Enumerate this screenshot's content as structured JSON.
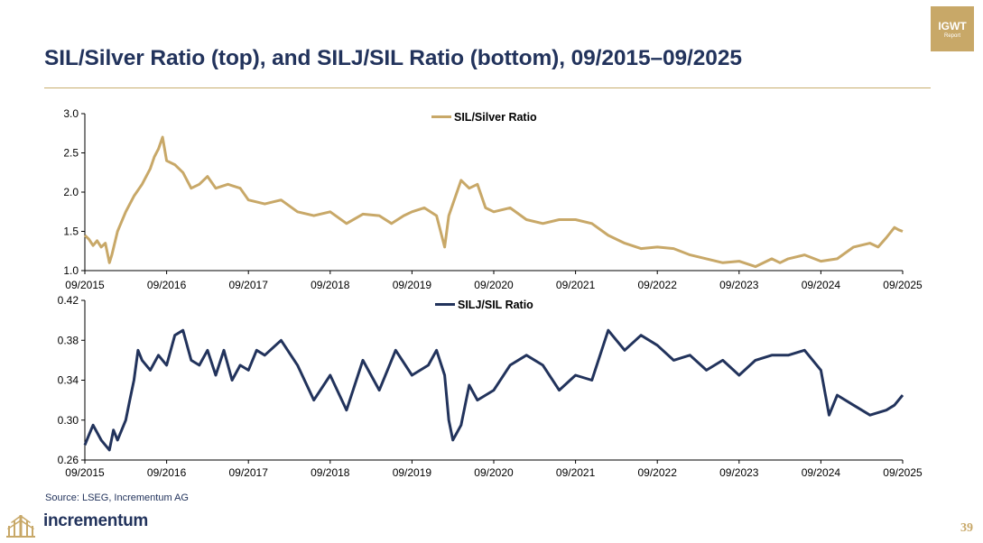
{
  "slide": {
    "title": "SIL/Silver Ratio (top), and SILJ/SIL Ratio (bottom), 09/2015–09/2025",
    "badge_line1": "IGWT",
    "badge_line2": "Report",
    "source": "Source: LSEG, Incrementum AG",
    "logo_text": "incrementum",
    "page_number": "39",
    "colors": {
      "gold": "#c8a868",
      "navy": "#22335c"
    }
  },
  "chart_data": [
    {
      "type": "line",
      "title": "",
      "legend": "SIL/Silver Ratio",
      "legend_position": "top-center",
      "color": "#c8a868",
      "categories": [
        "09/2015",
        "09/2016",
        "09/2017",
        "09/2018",
        "09/2019",
        "09/2020",
        "09/2021",
        "09/2022",
        "09/2023",
        "09/2024",
        "09/2025"
      ],
      "ylim": [
        1.0,
        3.0
      ],
      "yticks": [
        "1.0",
        "1.5",
        "2.0",
        "2.5",
        "3.0"
      ],
      "grid": false,
      "series": [
        {
          "name": "SIL/Silver Ratio",
          "x": [
            0,
            0.05,
            0.1,
            0.15,
            0.2,
            0.25,
            0.3,
            0.33,
            0.4,
            0.5,
            0.6,
            0.7,
            0.8,
            0.85,
            0.9,
            0.95,
            1.0,
            1.1,
            1.2,
            1.3,
            1.4,
            1.5,
            1.6,
            1.75,
            1.9,
            2.0,
            2.2,
            2.4,
            2.6,
            2.8,
            3.0,
            3.2,
            3.4,
            3.6,
            3.75,
            3.9,
            4.0,
            4.15,
            4.3,
            4.4,
            4.45,
            4.5,
            4.6,
            4.7,
            4.8,
            4.9,
            5.0,
            5.2,
            5.4,
            5.6,
            5.8,
            6.0,
            6.2,
            6.4,
            6.6,
            6.8,
            7.0,
            7.2,
            7.4,
            7.6,
            7.8,
            8.0,
            8.2,
            8.4,
            8.5,
            8.6,
            8.8,
            9.0,
            9.2,
            9.4,
            9.6,
            9.7,
            9.8,
            9.9,
            9.95,
            10.0
          ],
          "values": [
            1.45,
            1.4,
            1.32,
            1.38,
            1.3,
            1.35,
            1.1,
            1.2,
            1.5,
            1.75,
            1.95,
            2.1,
            2.3,
            2.45,
            2.55,
            2.7,
            2.4,
            2.35,
            2.25,
            2.05,
            2.1,
            2.2,
            2.05,
            2.1,
            2.05,
            1.9,
            1.85,
            1.9,
            1.75,
            1.7,
            1.75,
            1.6,
            1.72,
            1.7,
            1.6,
            1.7,
            1.75,
            1.8,
            1.7,
            1.3,
            1.7,
            1.85,
            2.15,
            2.05,
            2.1,
            1.8,
            1.75,
            1.8,
            1.65,
            1.6,
            1.65,
            1.65,
            1.6,
            1.45,
            1.35,
            1.28,
            1.3,
            1.28,
            1.2,
            1.15,
            1.1,
            1.12,
            1.05,
            1.15,
            1.1,
            1.15,
            1.2,
            1.12,
            1.15,
            1.3,
            1.35,
            1.3,
            1.42,
            1.55,
            1.52,
            1.5
          ]
        }
      ]
    },
    {
      "type": "line",
      "title": "",
      "legend": "SILJ/SIL Ratio",
      "legend_position": "top-center",
      "color": "#22335c",
      "categories": [
        "09/2015",
        "09/2016",
        "09/2017",
        "09/2018",
        "09/2019",
        "09/2020",
        "09/2021",
        "09/2022",
        "09/2023",
        "09/2024",
        "09/2025"
      ],
      "ylim": [
        0.26,
        0.42
      ],
      "yticks": [
        "0.26",
        "0.30",
        "0.34",
        "0.38",
        "0.42"
      ],
      "grid": false,
      "series": [
        {
          "name": "SILJ/SIL Ratio",
          "x": [
            0,
            0.05,
            0.1,
            0.2,
            0.3,
            0.35,
            0.4,
            0.5,
            0.55,
            0.6,
            0.65,
            0.7,
            0.8,
            0.9,
            1.0,
            1.1,
            1.2,
            1.3,
            1.4,
            1.5,
            1.6,
            1.7,
            1.8,
            1.9,
            2.0,
            2.1,
            2.2,
            2.4,
            2.6,
            2.8,
            3.0,
            3.2,
            3.4,
            3.6,
            3.8,
            4.0,
            4.2,
            4.3,
            4.4,
            4.45,
            4.5,
            4.6,
            4.7,
            4.8,
            5.0,
            5.2,
            5.4,
            5.6,
            5.8,
            6.0,
            6.2,
            6.4,
            6.6,
            6.8,
            7.0,
            7.2,
            7.4,
            7.6,
            7.8,
            8.0,
            8.2,
            8.4,
            8.6,
            8.8,
            9.0,
            9.1,
            9.2,
            9.4,
            9.6,
            9.8,
            9.9,
            10.0
          ],
          "values": [
            0.275,
            0.285,
            0.295,
            0.28,
            0.27,
            0.29,
            0.28,
            0.3,
            0.32,
            0.34,
            0.37,
            0.36,
            0.35,
            0.365,
            0.355,
            0.385,
            0.39,
            0.36,
            0.355,
            0.37,
            0.345,
            0.37,
            0.34,
            0.355,
            0.35,
            0.37,
            0.365,
            0.38,
            0.355,
            0.32,
            0.345,
            0.31,
            0.36,
            0.33,
            0.37,
            0.345,
            0.355,
            0.37,
            0.345,
            0.3,
            0.28,
            0.295,
            0.335,
            0.32,
            0.33,
            0.355,
            0.365,
            0.355,
            0.33,
            0.345,
            0.34,
            0.39,
            0.37,
            0.385,
            0.375,
            0.36,
            0.365,
            0.35,
            0.36,
            0.345,
            0.36,
            0.365,
            0.365,
            0.37,
            0.35,
            0.305,
            0.325,
            0.315,
            0.305,
            0.31,
            0.315,
            0.325
          ]
        }
      ]
    }
  ]
}
